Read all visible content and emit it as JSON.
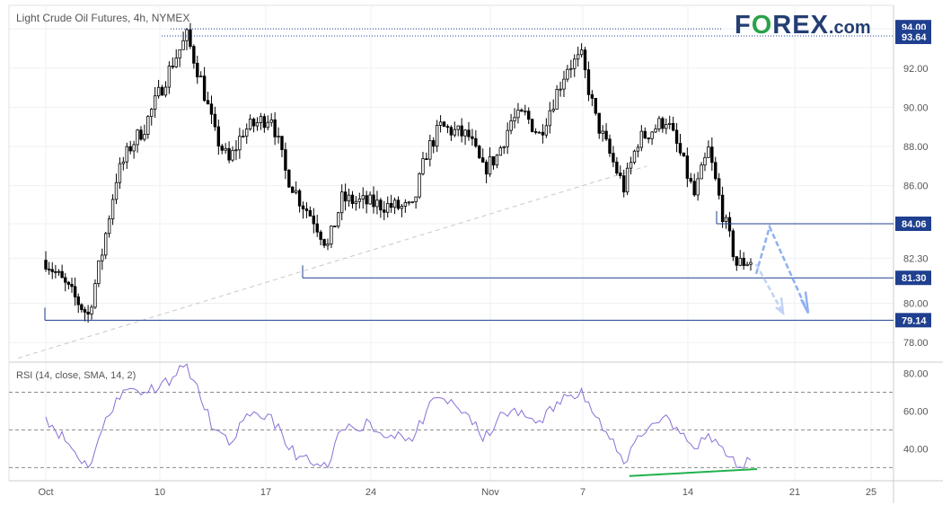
{
  "header": {
    "title": "Light Crude Oil Futures, 4h, NYMEX",
    "logo_before": "F",
    "logo_o": "O",
    "logo_after": "REX",
    "logo_suffix": ".com"
  },
  "colors": {
    "up_candle": "#ffffff",
    "down_candle": "#000000",
    "level_line": "#1f3f8f",
    "label_bg": "#1f3f8f",
    "rsi_line": "#8b6fd6",
    "divergence": "#22b14c",
    "projection": "#8fb0f0",
    "trendline": "#c8c8c8",
    "axis_text": "#555555"
  },
  "chart_data": [
    {
      "type": "candlestick",
      "title": "Light Crude Oil Futures, 4h, NYMEX",
      "x_ticks": [
        "Oct",
        "10",
        "17",
        "24",
        "Nov",
        "7",
        "14",
        "21",
        "25"
      ],
      "y_ticks": [
        78.0,
        80.0,
        82.3,
        84.06,
        86.0,
        88.0,
        90.0,
        92.0,
        94.0
      ],
      "ylim": [
        77.0,
        95.2
      ],
      "grid": true,
      "series": [
        {
          "values": [
            {
              "date": "Sep 30",
              "close": 82.2
            },
            {
              "date": "Oct 3",
              "close": 79.4
            },
            {
              "date": "Oct 4",
              "close": 82.6
            },
            {
              "date": "Oct 5",
              "close": 86.4
            },
            {
              "date": "Oct 6",
              "close": 88.0
            },
            {
              "date": "Oct 7",
              "close": 89.0
            },
            {
              "date": "Oct 9",
              "close": 92.3
            },
            {
              "date": "Oct 10",
              "close": 93.6
            },
            {
              "date": "Oct 11",
              "close": 91.4
            },
            {
              "date": "Oct 12",
              "close": 88.6
            },
            {
              "date": "Oct 13",
              "close": 87.2
            },
            {
              "date": "Oct 14",
              "close": 88.8
            },
            {
              "date": "Oct 16",
              "close": 89.6
            },
            {
              "date": "Oct 17",
              "close": 86.7
            },
            {
              "date": "Oct 18",
              "close": 85.3
            },
            {
              "date": "Oct 19",
              "close": 84.3
            },
            {
              "date": "Oct 20",
              "close": 82.9
            },
            {
              "date": "Oct 21",
              "close": 85.3
            },
            {
              "date": "Oct 23",
              "close": 85.1
            },
            {
              "date": "Oct 24",
              "close": 85.0
            },
            {
              "date": "Oct 25",
              "close": 84.9
            },
            {
              "date": "Oct 26",
              "close": 84.8
            },
            {
              "date": "Oct 27",
              "close": 87.7
            },
            {
              "date": "Oct 28",
              "close": 89.0
            },
            {
              "date": "Oct 30",
              "close": 88.5
            },
            {
              "date": "Oct 31",
              "close": 86.8
            },
            {
              "date": "Nov 1",
              "close": 87.5
            },
            {
              "date": "Nov 2",
              "close": 89.3
            },
            {
              "date": "Nov 3",
              "close": 89.6
            },
            {
              "date": "Nov 4",
              "close": 88.6
            },
            {
              "date": "Nov 6",
              "close": 92.1
            },
            {
              "date": "Nov 7",
              "close": 92.5
            },
            {
              "date": "Nov 8",
              "close": 89.4
            },
            {
              "date": "Nov 9",
              "close": 87.6
            },
            {
              "date": "Nov 10",
              "close": 85.9
            },
            {
              "date": "Nov 11",
              "close": 88.3
            },
            {
              "date": "Nov 13",
              "close": 89.4
            },
            {
              "date": "Nov 14",
              "close": 87.6
            },
            {
              "date": "Nov 15",
              "close": 85.5
            },
            {
              "date": "Nov 16",
              "close": 87.8
            },
            {
              "date": "Nov 17",
              "close": 84.6
            },
            {
              "date": "Nov 18",
              "close": 82.0
            },
            {
              "date": "Nov 19",
              "close": 82.2
            }
          ]
        }
      ],
      "levels": [
        {
          "label": "94.00",
          "value": 94.0,
          "style": "dotted"
        },
        {
          "label": "93.64",
          "value": 93.64,
          "style": "dotted"
        },
        {
          "label": "84.06",
          "value": 84.06,
          "style": "solid"
        },
        {
          "label": "81.30",
          "value": 81.3,
          "style": "solid"
        },
        {
          "label": "79.14",
          "value": 79.14,
          "style": "solid"
        }
      ],
      "annotations": [
        "dashed trendline from Sep 27 low to Nov 10",
        "projected rebound to ~84 then decline toward ~79.2"
      ]
    },
    {
      "type": "line",
      "title": "RSI (14, close, SMA, 14, 2)",
      "y_ticks": [
        40.0,
        60.0,
        80.0
      ],
      "ylim": [
        23,
        86
      ],
      "reference_lines": [
        30,
        50,
        70
      ],
      "series": [
        {
          "values": [
            {
              "date": "Sep 30",
              "value": 57
            },
            {
              "date": "Oct 3",
              "value": 30
            },
            {
              "date": "Oct 4",
              "value": 50
            },
            {
              "date": "Oct 5",
              "value": 67
            },
            {
              "date": "Oct 6",
              "value": 72
            },
            {
              "date": "Oct 7",
              "value": 70
            },
            {
              "date": "Oct 9",
              "value": 78
            },
            {
              "date": "Oct 10",
              "value": 85
            },
            {
              "date": "Oct 11",
              "value": 66
            },
            {
              "date": "Oct 12",
              "value": 50
            },
            {
              "date": "Oct 13",
              "value": 42
            },
            {
              "date": "Oct 14",
              "value": 55
            },
            {
              "date": "Oct 16",
              "value": 58
            },
            {
              "date": "Oct 17",
              "value": 42
            },
            {
              "date": "Oct 18",
              "value": 36
            },
            {
              "date": "Oct 19",
              "value": 31
            },
            {
              "date": "Oct 20",
              "value": 30
            },
            {
              "date": "Oct 21",
              "value": 50
            },
            {
              "date": "Oct 23",
              "value": 54
            },
            {
              "date": "Oct 24",
              "value": 46
            },
            {
              "date": "Oct 25",
              "value": 49
            },
            {
              "date": "Oct 26",
              "value": 44
            },
            {
              "date": "Oct 27",
              "value": 60
            },
            {
              "date": "Oct 28",
              "value": 67
            },
            {
              "date": "Oct 30",
              "value": 58
            },
            {
              "date": "Oct 31",
              "value": 44
            },
            {
              "date": "Nov 1",
              "value": 55
            },
            {
              "date": "Nov 2",
              "value": 60
            },
            {
              "date": "Nov 3",
              "value": 57
            },
            {
              "date": "Nov 4",
              "value": 55
            },
            {
              "date": "Nov 6",
              "value": 68
            },
            {
              "date": "Nov 7",
              "value": 72
            },
            {
              "date": "Nov 8",
              "value": 57
            },
            {
              "date": "Nov 9",
              "value": 45
            },
            {
              "date": "Nov 10",
              "value": 32
            },
            {
              "date": "Nov 11",
              "value": 47
            },
            {
              "date": "Nov 13",
              "value": 58
            },
            {
              "date": "Nov 14",
              "value": 48
            },
            {
              "date": "Nov 15",
              "value": 40
            },
            {
              "date": "Nov 16",
              "value": 48
            },
            {
              "date": "Nov 17",
              "value": 41
            },
            {
              "date": "Nov 18",
              "value": 30
            },
            {
              "date": "Nov 19",
              "value": 34
            }
          ]
        }
      ],
      "annotations": [
        "green rising line under RSI lows (bullish divergence)"
      ]
    }
  ]
}
